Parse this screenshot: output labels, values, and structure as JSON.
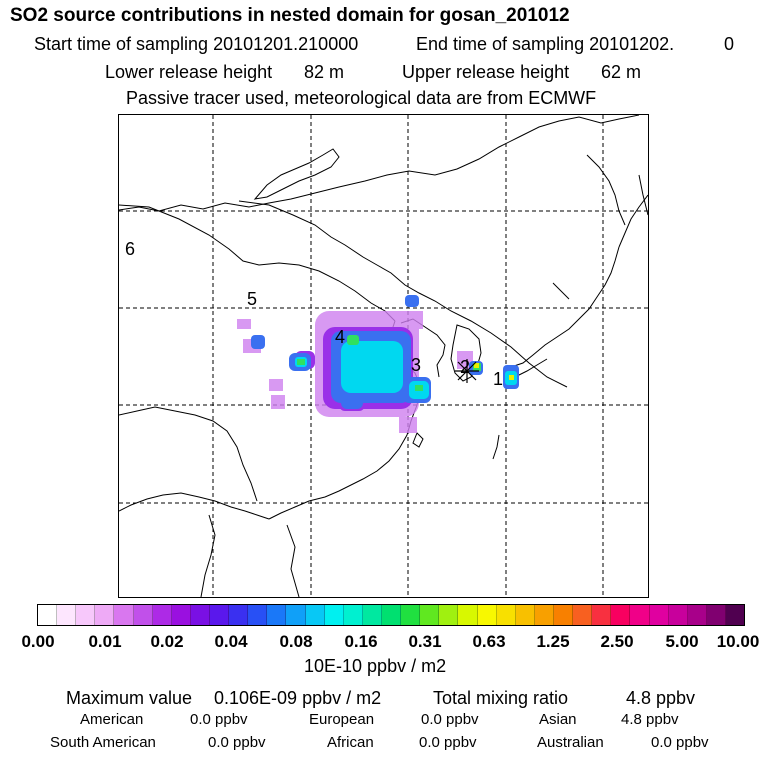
{
  "title": "SO2 source contributions in nested domain for gosan_201012",
  "header": {
    "start_label": "Start time of sampling 20101201.210000",
    "end_label": "End time of sampling 20101202.",
    "end_suffix": "0",
    "lower_label": "Lower release height",
    "lower_value": "82 m",
    "upper_label": "Upper release height",
    "upper_value": "62 m",
    "tracer_note": "Passive tracer used, meteorological data are from ECMWF"
  },
  "map": {
    "day_labels": [
      "6",
      "5",
      "4",
      "3",
      "2",
      "1"
    ],
    "receptor_icon": "asterisk-receptor-icon"
  },
  "colorbar": {
    "colors": [
      "#ffffff",
      "#fde6fe",
      "#f7c8fb",
      "#eeaaf6",
      "#d977ef",
      "#c150ea",
      "#ad2ae6",
      "#9a10e0",
      "#7a10e4",
      "#5a18ec",
      "#3a30f0",
      "#2850f5",
      "#1a78f8",
      "#10a0f8",
      "#08c8f5",
      "#00f0f0",
      "#00f0d0",
      "#00e8a0",
      "#00e070",
      "#20e040",
      "#60e820",
      "#a0f010",
      "#d8f800",
      "#f8f800",
      "#f8e000",
      "#f8c000",
      "#f8a000",
      "#f88000",
      "#f86020",
      "#f83040",
      "#f80060",
      "#f00088",
      "#e000a0",
      "#c8009c",
      "#a8008a",
      "#800070",
      "#500050"
    ],
    "ticks": [
      "0.00",
      "0.01",
      "0.02",
      "0.04",
      "0.08",
      "0.16",
      "0.31",
      "0.63",
      "1.25",
      "2.50",
      "5.00",
      "10.00"
    ],
    "units": "10E-10 ppbv / m2"
  },
  "stats": {
    "max_label": "Maximum value",
    "max_value": "0.106E-09 ppbv / m2",
    "total_label": "Total mixing ratio",
    "total_value": "4.8 ppbv",
    "regions": [
      {
        "name": "American",
        "value": "0.0 ppbv"
      },
      {
        "name": "European",
        "value": "0.0 ppbv"
      },
      {
        "name": "Asian",
        "value": "4.8 ppbv"
      },
      {
        "name": "South American",
        "value": "0.0 ppbv"
      },
      {
        "name": "African",
        "value": "0.0 ppbv"
      },
      {
        "name": "Australian",
        "value": "0.0 ppbv"
      }
    ]
  }
}
